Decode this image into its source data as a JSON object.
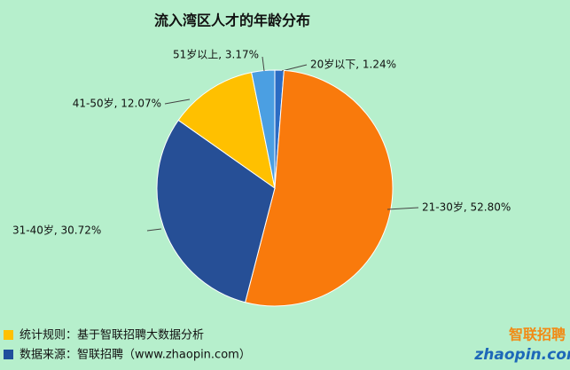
{
  "chart_data": {
    "type": "pie",
    "title": "流入湾区人才的年龄分布",
    "categories": [
      "20岁以下",
      "21-30岁",
      "31-40岁",
      "41-50岁",
      "51岁以上"
    ],
    "values": [
      1.24,
      52.8,
      30.72,
      12.07,
      3.17
    ],
    "value_labels": [
      "20岁以下, 1.24%",
      "21-30岁, 52.80%",
      "31-40岁, 30.72%",
      "41-50岁, 12.07%",
      "51岁以上, 3.17%"
    ],
    "colors": [
      "#2b6cc4",
      "#f97a0c",
      "#264f96",
      "#ffc000",
      "#4b9fe2"
    ],
    "footnotes": [
      {
        "text": "统计规则：基于智联招聘大数据分析",
        "color": "#ffc000"
      },
      {
        "text": "数据来源：智联招聘（www.zhaopin.com）",
        "color": "#1f4e9c"
      }
    ],
    "logo": {
      "name": "智联招聘",
      "site": "zhaopin.com"
    }
  }
}
